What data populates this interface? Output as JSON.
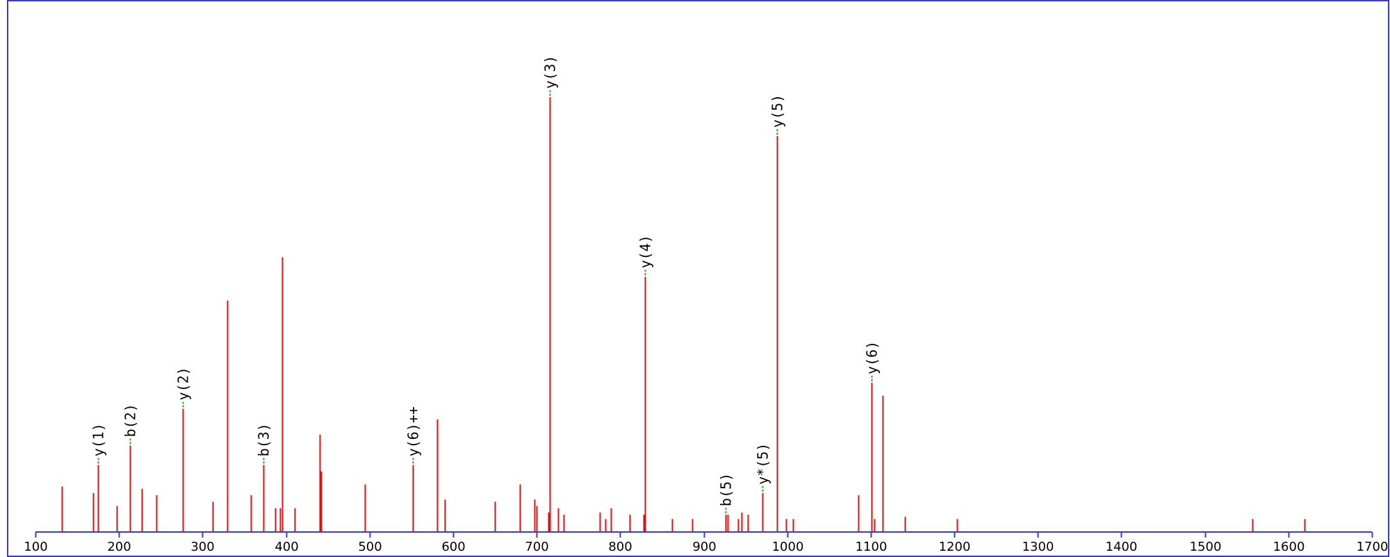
{
  "colors": {
    "frame": "#3b3bc4",
    "axis": "#3b3bc4",
    "peak": "#e01010",
    "label_connector": "#22aa22",
    "background": "#ffffff"
  },
  "chart_data": {
    "type": "bar",
    "title": "",
    "xlabel": "",
    "ylabel": "",
    "xlim": [
      100,
      1700
    ],
    "ylim": [
      0,
      100
    ],
    "grid": false,
    "legend": "none",
    "x_ticks": [
      100,
      200,
      300,
      400,
      500,
      600,
      700,
      800,
      900,
      1000,
      1100,
      1200,
      1300,
      1400,
      1500,
      1600,
      1700
    ],
    "peaks": [
      {
        "mz": 132,
        "intensity": 10.5
      },
      {
        "mz": 169,
        "intensity": 9
      },
      {
        "mz": 175,
        "intensity": 15.5,
        "label": "y(1)"
      },
      {
        "mz": 197,
        "intensity": 6
      },
      {
        "mz": 213,
        "intensity": 20,
        "label": "b(2)"
      },
      {
        "mz": 227,
        "intensity": 10
      },
      {
        "mz": 245,
        "intensity": 8.5
      },
      {
        "mz": 276,
        "intensity": 28.5,
        "label": "y(2)"
      },
      {
        "mz": 312,
        "intensity": 7
      },
      {
        "mz": 330,
        "intensity": 53.5
      },
      {
        "mz": 358,
        "intensity": 8.5
      },
      {
        "mz": 373,
        "intensity": 15.5,
        "label": "b(3)"
      },
      {
        "mz": 387,
        "intensity": 5.5
      },
      {
        "mz": 393,
        "intensity": 5.5
      },
      {
        "mz": 395,
        "intensity": 63.5
      },
      {
        "mz": 410,
        "intensity": 5.5
      },
      {
        "mz": 440,
        "intensity": 22.5
      },
      {
        "mz": 442,
        "intensity": 14
      },
      {
        "mz": 494,
        "intensity": 11
      },
      {
        "mz": 552,
        "intensity": 15.5,
        "label": "y(6)++"
      },
      {
        "mz": 581,
        "intensity": 26
      },
      {
        "mz": 590,
        "intensity": 7.5
      },
      {
        "mz": 650,
        "intensity": 7
      },
      {
        "mz": 680,
        "intensity": 11
      },
      {
        "mz": 697,
        "intensity": 7.5
      },
      {
        "mz": 700,
        "intensity": 6
      },
      {
        "mz": 714,
        "intensity": 4.5
      },
      {
        "mz": 716,
        "intensity": 100.5,
        "label": "y(3)"
      },
      {
        "mz": 726,
        "intensity": 5.5
      },
      {
        "mz": 732,
        "intensity": 4
      },
      {
        "mz": 776,
        "intensity": 4.5
      },
      {
        "mz": 782,
        "intensity": 3
      },
      {
        "mz": 789,
        "intensity": 5.5
      },
      {
        "mz": 811,
        "intensity": 4
      },
      {
        "mz": 828,
        "intensity": 4
      },
      {
        "mz": 830,
        "intensity": 59,
        "label": "y(4)"
      },
      {
        "mz": 862,
        "intensity": 3
      },
      {
        "mz": 886,
        "intensity": 3
      },
      {
        "mz": 926,
        "intensity": 4,
        "label": "b(5)"
      },
      {
        "mz": 929,
        "intensity": 4
      },
      {
        "mz": 941,
        "intensity": 3
      },
      {
        "mz": 945,
        "intensity": 4.5
      },
      {
        "mz": 953,
        "intensity": 4
      },
      {
        "mz": 970,
        "intensity": 9,
        "label": "y*(5)"
      },
      {
        "mz": 988,
        "intensity": 91.5,
        "label": "y(5)"
      },
      {
        "mz": 999,
        "intensity": 3
      },
      {
        "mz": 1007,
        "intensity": 3
      },
      {
        "mz": 1085,
        "intensity": 8.5
      },
      {
        "mz": 1101,
        "intensity": 34.5,
        "label": "y(6)"
      },
      {
        "mz": 1104,
        "intensity": 3
      },
      {
        "mz": 1114,
        "intensity": 31.5
      },
      {
        "mz": 1141,
        "intensity": 3.5
      },
      {
        "mz": 1203,
        "intensity": 3
      },
      {
        "mz": 1557,
        "intensity": 3
      },
      {
        "mz": 1619,
        "intensity": 3
      }
    ]
  }
}
